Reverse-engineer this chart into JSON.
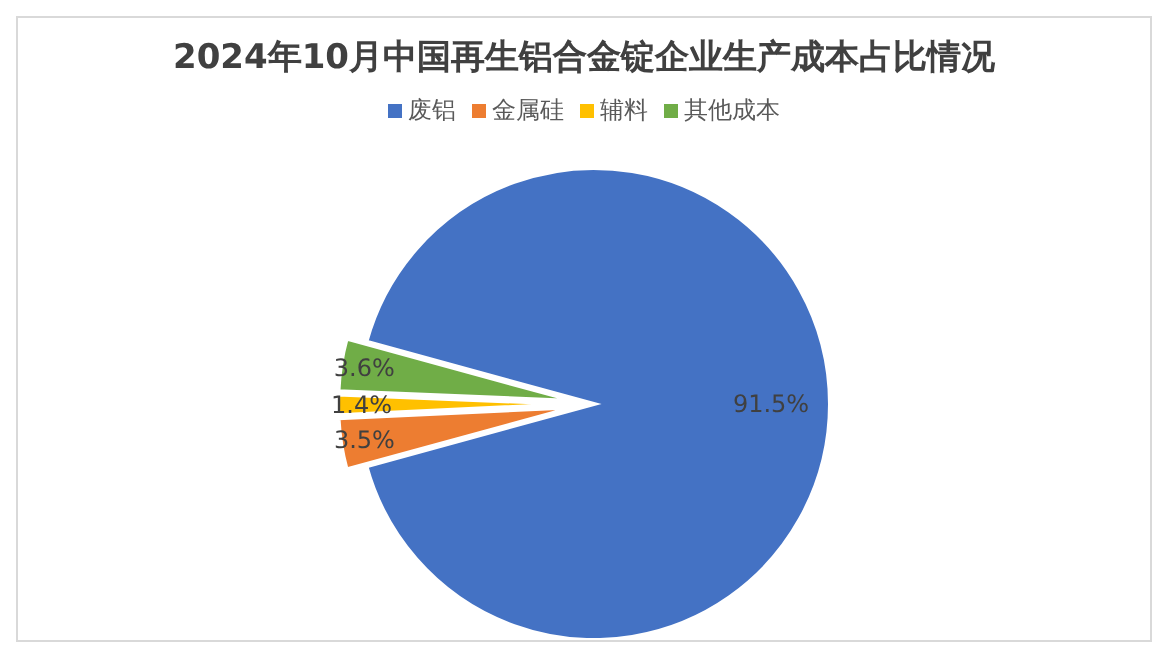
{
  "chart_data": {
    "type": "pie",
    "title": "2024年10月中国再生铝合金锭企业生产成本占比情况",
    "categories": [
      "废铝",
      "金属硅",
      "辅料",
      "其他成本"
    ],
    "values": [
      91.5,
      3.5,
      1.4,
      3.6
    ],
    "colors": [
      "#4472c4",
      "#ed7d31",
      "#ffc000",
      "#70ad47"
    ],
    "value_labels": [
      "91.5%",
      "3.5%",
      "1.4%",
      "3.6%"
    ],
    "legend": "top"
  }
}
